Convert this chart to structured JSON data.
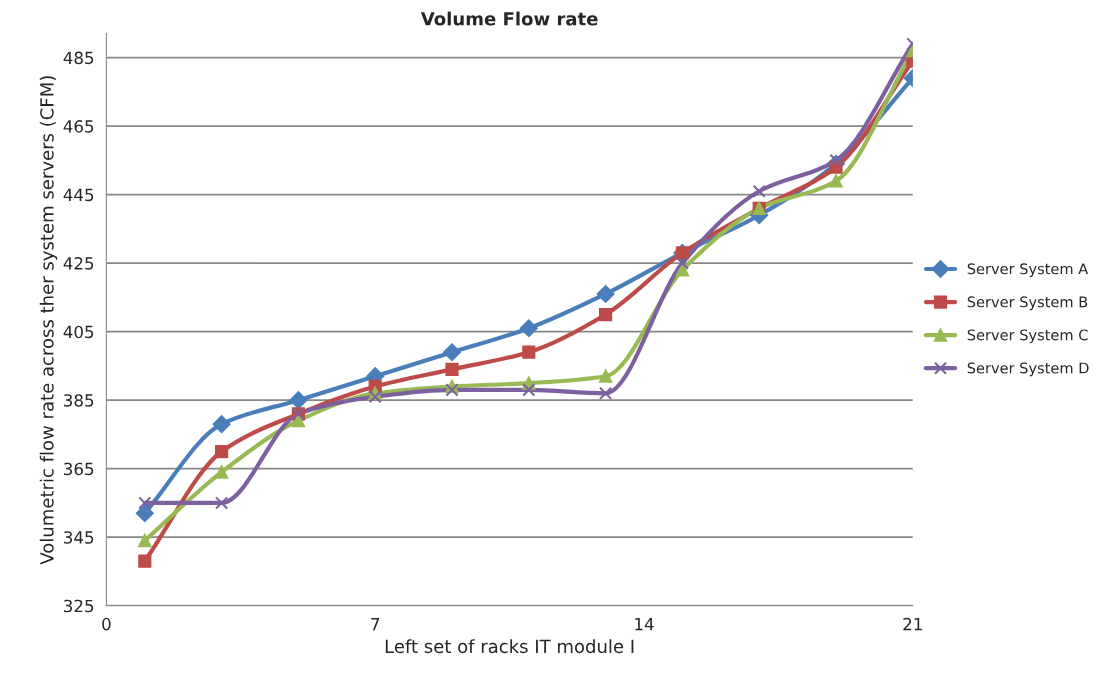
{
  "chart_data": {
    "type": "line",
    "title": "Volume Flow rate",
    "xlabel": "Left set of racks IT module I",
    "ylabel": "Volumetric flow rate across ther system servers (CFM)",
    "x": [
      1,
      3,
      5,
      7,
      9,
      11,
      13,
      15,
      17,
      19,
      21
    ],
    "series": [
      {
        "name": "Server System A",
        "color": "#4a7ebb",
        "marker": "diamond",
        "values": [
          352,
          378,
          385,
          392,
          399,
          406,
          416,
          428,
          439,
          454,
          479
        ]
      },
      {
        "name": "Server System B",
        "color": "#be4b48",
        "marker": "square",
        "values": [
          338,
          370,
          381,
          389,
          394,
          399,
          410,
          428,
          441,
          453,
          484
        ]
      },
      {
        "name": "Server System C",
        "color": "#98b954",
        "marker": "triangle",
        "values": [
          344,
          364,
          379,
          387,
          389,
          390,
          392,
          423,
          441,
          449,
          487
        ]
      },
      {
        "name": "Server System D",
        "color": "#7d60a0",
        "marker": "cross",
        "values": [
          355,
          355,
          381,
          386,
          388,
          388,
          387,
          425,
          446,
          455,
          489
        ]
      }
    ],
    "xlim": [
      0,
      21
    ],
    "xticks": [
      0,
      7,
      14,
      21
    ],
    "ylim": [
      325,
      492
    ],
    "yticks": [
      325,
      345,
      365,
      385,
      405,
      425,
      445,
      465,
      485
    ],
    "grid": "y",
    "legend": "right",
    "line_style": "solid"
  }
}
